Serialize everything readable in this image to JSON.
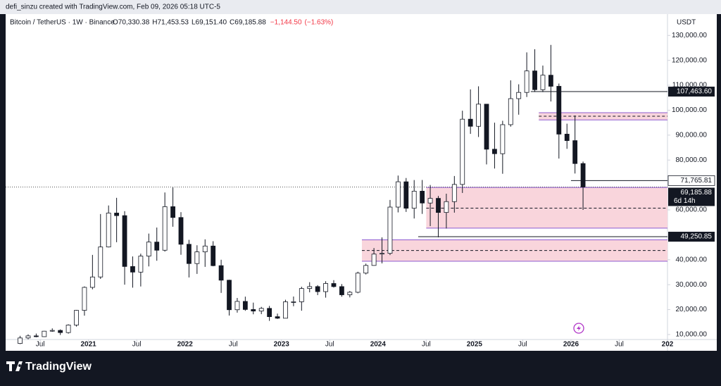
{
  "header": {
    "credit": "defi_sinzu created with TradingView.com, Feb 09, 2026 05:18 UTC-5"
  },
  "chart_data": {
    "type": "candlestick",
    "title": "Bitcoin / TetherUS · 1W · Binance",
    "ohlc": [
      {
        "value": 70330.38,
        "label": "O70,330.38"
      },
      {
        "value": 71453.53,
        "label": "H71,453.53"
      },
      {
        "value": 69151.4,
        "label": "L69,151.40"
      },
      {
        "value": 69185.88,
        "label": "C69,185.88"
      },
      {
        "value": -1144.5,
        "label": "−1,144.50"
      },
      {
        "value": -1.63,
        "label": "(−1.63%)"
      }
    ],
    "y_unit": "USDT",
    "ylim": [
      8000,
      138000
    ],
    "yticks": [
      {
        "value": 10000,
        "label": "10,000.00"
      },
      {
        "value": 20000,
        "label": "20,000.00"
      },
      {
        "value": 30000,
        "label": "30,000.00"
      },
      {
        "value": 40000,
        "label": "40,000.00"
      },
      {
        "value": 60000,
        "label": "60,000.00"
      },
      {
        "value": 80000,
        "label": "80,000.00"
      },
      {
        "value": 90000,
        "label": "90,000.00"
      },
      {
        "value": 100000,
        "label": "100,000.00"
      },
      {
        "value": 110000,
        "label": "110,000.00"
      },
      {
        "value": 120000,
        "label": "120,000.00"
      },
      {
        "value": 130000,
        "label": "130,000.00"
      }
    ],
    "xlim": [
      "2020-02",
      "2027-01"
    ],
    "xticks": [
      {
        "value": "2020-07",
        "label": "Jul"
      },
      {
        "value": "2021-01",
        "label": "2021"
      },
      {
        "value": "2021-07",
        "label": "Jul"
      },
      {
        "value": "2022-01",
        "label": "2022"
      },
      {
        "value": "2022-07",
        "label": "Jul"
      },
      {
        "value": "2023-01",
        "label": "2023"
      },
      {
        "value": "2023-07",
        "label": "Jul"
      },
      {
        "value": "2024-01",
        "label": "2024"
      },
      {
        "value": "2024-07",
        "label": "Jul"
      },
      {
        "value": "2025-01",
        "label": "2025"
      },
      {
        "value": "2025-07",
        "label": "Jul"
      },
      {
        "value": "2026-01",
        "label": "2026"
      },
      {
        "value": "2026-07",
        "label": "Jul"
      },
      {
        "value": "2027-01",
        "label": "202"
      }
    ],
    "up_color": "#ffffff",
    "down_color": "#131722",
    "wick_color": "#131722",
    "x": [
      "2020-04",
      "2020-05",
      "2020-06",
      "2020-07",
      "2020-08",
      "2020-09",
      "2020-10",
      "2020-11",
      "2020-12",
      "2021-01",
      "2021-02",
      "2021-03",
      "2021-04",
      "2021-05",
      "2021-06",
      "2021-07",
      "2021-08",
      "2021-09",
      "2021-10",
      "2021-11",
      "2021-12",
      "2022-01",
      "2022-02",
      "2022-03",
      "2022-04",
      "2022-05",
      "2022-06",
      "2022-07",
      "2022-08",
      "2022-09",
      "2022-10",
      "2022-11",
      "2022-12",
      "2023-01",
      "2023-02",
      "2023-03",
      "2023-04",
      "2023-05",
      "2023-06",
      "2023-07",
      "2023-08",
      "2023-09",
      "2023-10",
      "2023-11",
      "2023-12",
      "2024-01",
      "2024-02",
      "2024-03",
      "2024-04",
      "2024-05",
      "2024-06",
      "2024-07",
      "2024-08",
      "2024-09",
      "2024-10",
      "2024-11",
      "2024-12",
      "2025-01",
      "2025-02",
      "2025-03",
      "2025-04",
      "2025-05",
      "2025-06",
      "2025-07",
      "2025-08",
      "2025-09",
      "2025-10",
      "2025-11",
      "2025-12",
      "2026-01",
      "2026-02"
    ],
    "open": [
      6410,
      8620,
      9450,
      9140,
      11340,
      11650,
      10780,
      13800,
      19700,
      28920,
      33090,
      45130,
      58740,
      57700,
      37300,
      35040,
      41460,
      47100,
      43820,
      61300,
      56950,
      46210,
      38470,
      43160,
      45510,
      37630,
      31800,
      19940,
      23290,
      20050,
      19420,
      20490,
      17160,
      16540,
      23120,
      23140,
      28460,
      29230,
      27210,
      30470,
      29230,
      25940,
      26960,
      34640,
      37720,
      42280,
      42580,
      61130,
      71280,
      60670,
      67520,
      62760,
      64630,
      58970,
      63330,
      70220,
      96400,
      93550,
      102430,
      84350,
      82550,
      94200,
      104640,
      107140,
      115760,
      108250,
      114050,
      109600,
      90400,
      87800,
      78600
    ],
    "high": [
      9470,
      10070,
      10380,
      11450,
      12470,
      12060,
      14100,
      19860,
      29300,
      41950,
      58350,
      61780,
      64850,
      59500,
      41330,
      42450,
      50500,
      52920,
      67000,
      69000,
      59100,
      47990,
      45820,
      48190,
      47440,
      40000,
      31980,
      24670,
      25200,
      22800,
      21090,
      21480,
      18390,
      23950,
      25250,
      29180,
      31000,
      29820,
      31390,
      31800,
      30250,
      27480,
      35200,
      38450,
      44700,
      48970,
      64000,
      73780,
      72800,
      71980,
      72000,
      70000,
      65600,
      66500,
      73600,
      99800,
      108350,
      109590,
      102500,
      95000,
      95760,
      111980,
      110400,
      123200,
      124470,
      117900,
      126200,
      110700,
      94600,
      97900,
      79400
    ],
    "low": [
      6150,
      8100,
      8900,
      9010,
      11100,
      9820,
      10370,
      13200,
      17570,
      28130,
      32300,
      44950,
      47040,
      30000,
      28800,
      29280,
      37330,
      39600,
      43280,
      53250,
      42000,
      32900,
      34320,
      37150,
      37380,
      26700,
      17620,
      18780,
      19520,
      18120,
      18190,
      15480,
      16250,
      16500,
      21350,
      19550,
      26940,
      25810,
      24800,
      28860,
      25170,
      24900,
      26550,
      34100,
      37600,
      38550,
      41880,
      59000,
      59190,
      56550,
      58400,
      53500,
      49000,
      52550,
      58900,
      66800,
      90500,
      89250,
      78250,
      76600,
      74500,
      93400,
      98200,
      105300,
      107300,
      107270,
      103500,
      80600,
      84500,
      74600,
      60000
    ],
    "close": [
      8620,
      9450,
      9140,
      11340,
      11650,
      10780,
      13800,
      19700,
      28920,
      33090,
      45130,
      58740,
      57700,
      37300,
      35040,
      41460,
      47100,
      43820,
      61300,
      56950,
      46210,
      38470,
      43160,
      45510,
      37630,
      31800,
      19940,
      23290,
      20050,
      19420,
      20490,
      17160,
      16540,
      23120,
      23140,
      28460,
      29230,
      27210,
      30470,
      29230,
      25940,
      26960,
      34640,
      37720,
      42280,
      42580,
      61130,
      71280,
      60670,
      67520,
      62760,
      64630,
      58970,
      63330,
      70220,
      96400,
      93550,
      102430,
      84350,
      82550,
      94200,
      104640,
      107140,
      115760,
      108250,
      114050,
      109600,
      90400,
      87800,
      78600,
      69185.88
    ],
    "zones": [
      {
        "start": "2025-09",
        "top": 99000,
        "bottom": 96100,
        "mid": 97600
      },
      {
        "start": "2024-07",
        "top": 69000,
        "bottom": 52700,
        "mid": 60700
      },
      {
        "start": "2023-11",
        "top": 48000,
        "bottom": 39400,
        "mid": 43700
      }
    ],
    "zone_fill": "#f9d5dc",
    "zone_border": "#8e5bd1",
    "levels": [
      {
        "start": "2025-08",
        "price": {
          "value": 107463.6,
          "label": "107,463.60"
        }
      },
      {
        "start": "2026-01",
        "price": {
          "value": 71765.81,
          "label": "71,765.81"
        }
      },
      {
        "start": "2024-06",
        "price": {
          "value": 49250.85,
          "label": "49,250.85"
        }
      }
    ],
    "last_price": {
      "value": 69185.88,
      "label": "69,185.88"
    },
    "countdown": "6d 14h"
  },
  "footer": {
    "brand": "TradingView"
  }
}
